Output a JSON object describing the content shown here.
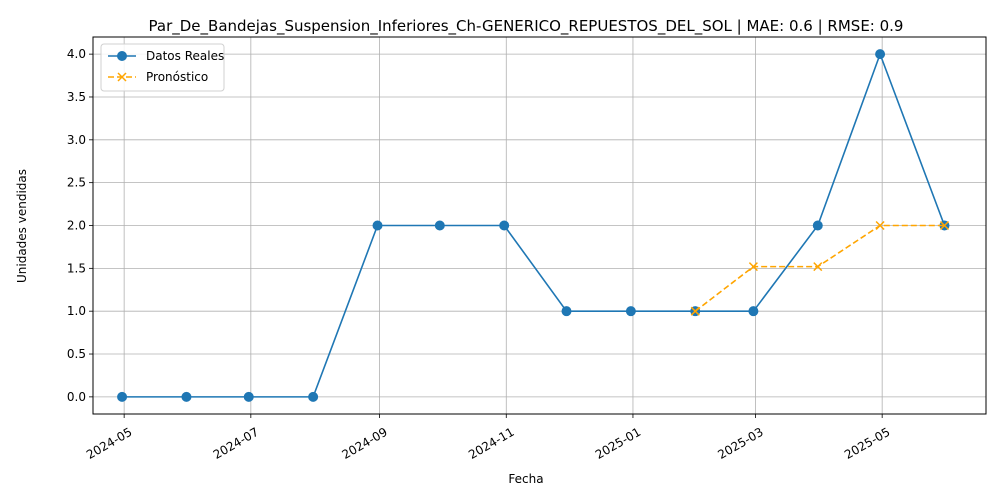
{
  "chart_data": {
    "type": "line",
    "title": "Par_De_Bandejas_Suspension_Inferiores_Ch-GENERICO_REPUESTOS_DEL_SOL | MAE: 0.6 | RMSE: 0.9",
    "xlabel": "Fecha",
    "ylabel": "Unidades vendidas",
    "ylim": [
      -0.2,
      4.2
    ],
    "xlim": [
      "2024-04-16",
      "2025-06-20"
    ],
    "grid": true,
    "legend_position": "top-left",
    "x_ticks": [
      "2024-05",
      "2024-07",
      "2024-09",
      "2024-11",
      "2025-01",
      "2025-03",
      "2025-05"
    ],
    "y_ticks": [
      "0.0",
      "0.5",
      "1.0",
      "1.5",
      "2.0",
      "2.5",
      "3.0",
      "3.5",
      "4.0"
    ],
    "series": [
      {
        "name": "Datos Reales",
        "color": "#1f77b4",
        "marker": "circle",
        "linestyle": "solid",
        "x": [
          "2024-04-30",
          "2024-05-31",
          "2024-06-30",
          "2024-07-31",
          "2024-08-31",
          "2024-09-30",
          "2024-10-31",
          "2024-11-30",
          "2024-12-31",
          "2025-01-31",
          "2025-02-28",
          "2025-03-31",
          "2025-04-30",
          "2025-05-31"
        ],
        "values": [
          0,
          0,
          0,
          0,
          2,
          2,
          2,
          1,
          1,
          1,
          1,
          2,
          4,
          2
        ]
      },
      {
        "name": "Pronóstico",
        "color": "#ffa500",
        "marker": "x",
        "linestyle": "dashed",
        "x": [
          "2025-01-31",
          "2025-02-28",
          "2025-03-31",
          "2025-04-30",
          "2025-05-31"
        ],
        "values": [
          1,
          1.52,
          1.52,
          2,
          2
        ]
      }
    ]
  }
}
